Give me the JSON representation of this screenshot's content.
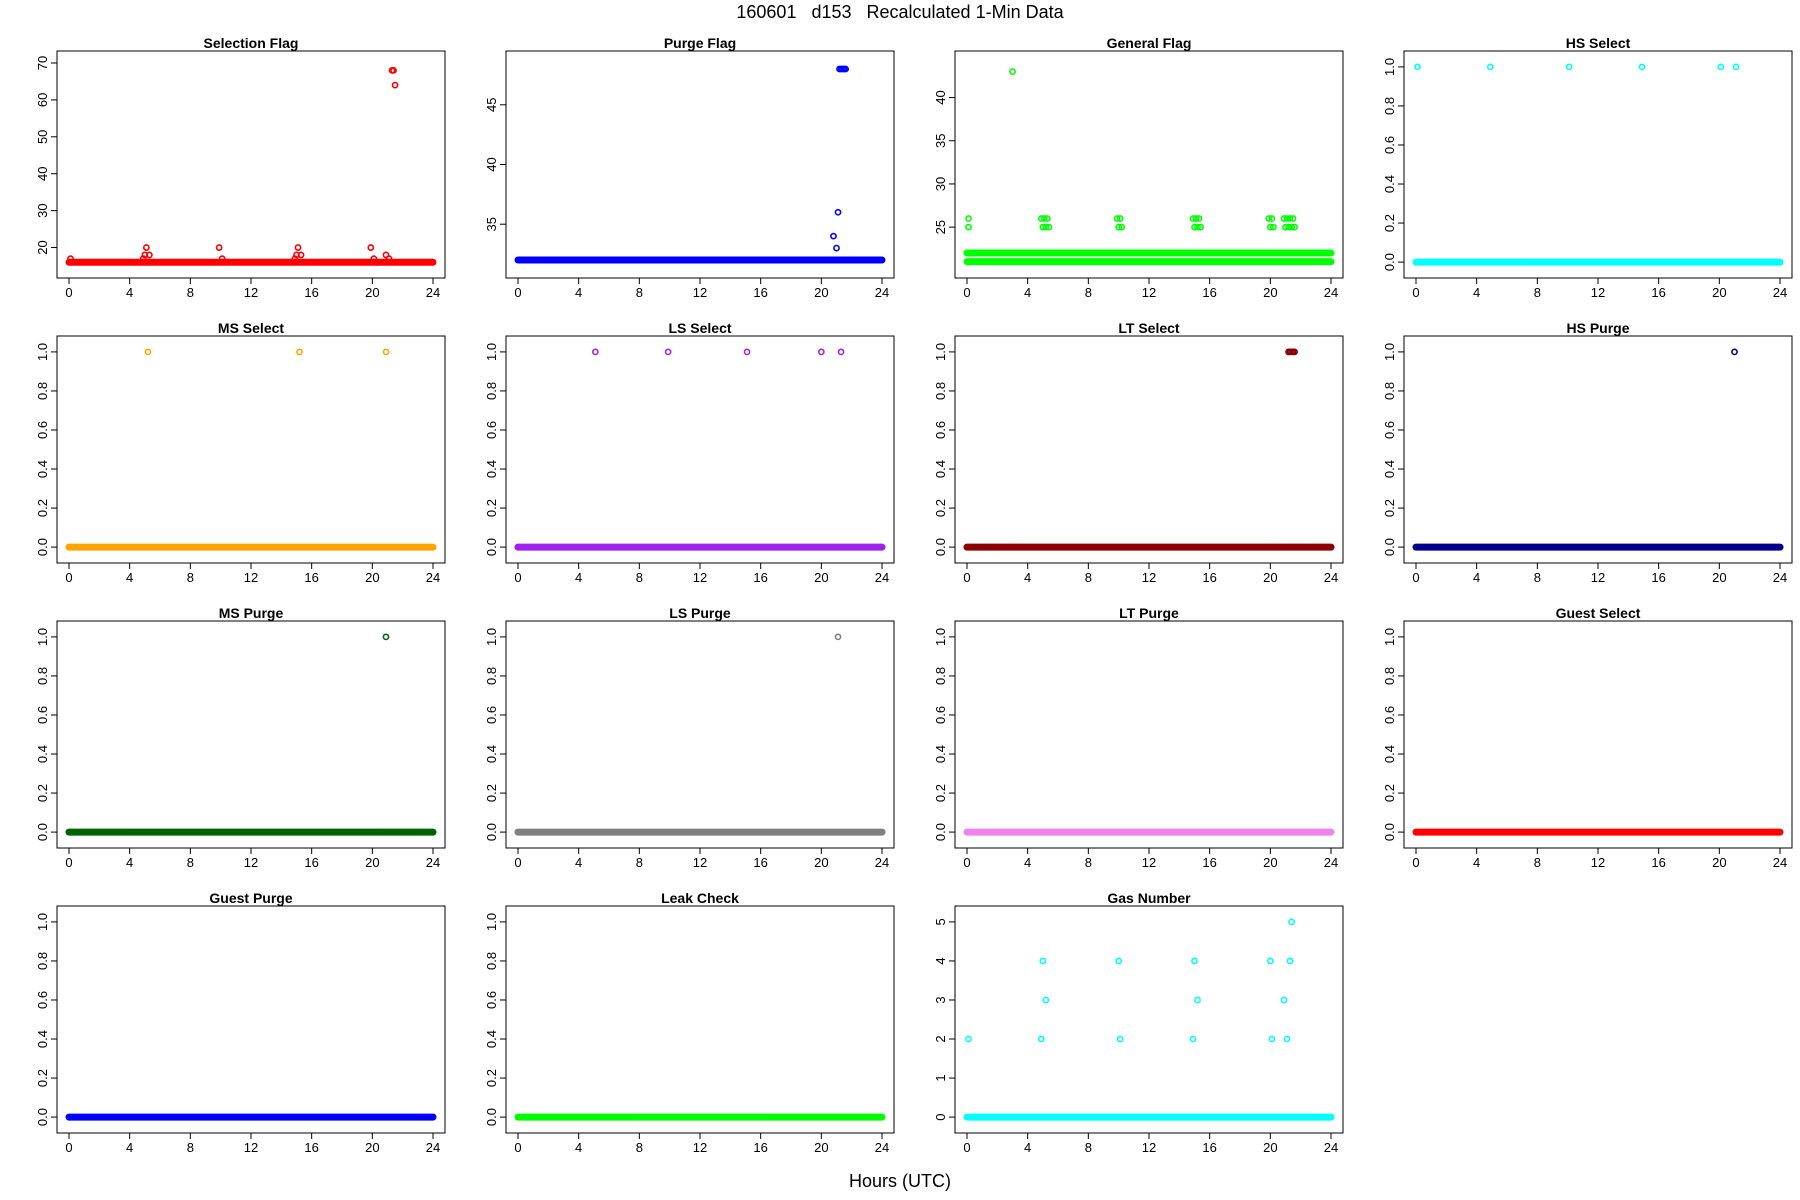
{
  "figure": {
    "title": "160601   d153   Recalculated 1-Min Data",
    "xlabel": "Hours (UTC)"
  },
  "chart_data": [
    {
      "type": "scatter",
      "title": "Selection Flag",
      "color": "#ff0000",
      "xlim": [
        0,
        24
      ],
      "ylim": [
        15,
        70
      ],
      "xticks": [
        0,
        4,
        8,
        12,
        16,
        20,
        24
      ],
      "yticks": [
        20,
        30,
        40,
        50,
        60,
        70
      ],
      "baseline_segments": [
        {
          "y": 16,
          "from": 0,
          "to": 24
        }
      ],
      "points": [
        [
          0.1,
          17
        ],
        [
          4.9,
          17
        ],
        [
          5.0,
          18
        ],
        [
          5.1,
          20
        ],
        [
          5.3,
          18
        ],
        [
          9.9,
          20
        ],
        [
          10.1,
          17
        ],
        [
          14.9,
          17
        ],
        [
          15.0,
          18
        ],
        [
          15.1,
          20
        ],
        [
          15.3,
          18
        ],
        [
          19.9,
          20
        ],
        [
          20.1,
          17
        ],
        [
          20.3,
          16
        ],
        [
          20.9,
          18
        ],
        [
          21.1,
          17
        ],
        [
          21.3,
          68
        ],
        [
          21.4,
          68
        ],
        [
          21.5,
          64
        ]
      ]
    },
    {
      "type": "scatter",
      "title": "Purge Flag",
      "color": "#0000ff",
      "xlim": [
        0,
        24
      ],
      "ylim": [
        31.5,
        48.5
      ],
      "xticks": [
        0,
        4,
        8,
        12,
        16,
        20,
        24
      ],
      "yticks": [
        35,
        40,
        45
      ],
      "baseline_segments": [
        {
          "y": 32,
          "from": 0,
          "to": 24
        }
      ],
      "points": [
        [
          20.8,
          34
        ],
        [
          21.0,
          33
        ],
        [
          21.1,
          36
        ],
        [
          21.2,
          48
        ],
        [
          21.3,
          48
        ],
        [
          21.4,
          48
        ],
        [
          21.5,
          48
        ],
        [
          21.6,
          48
        ]
      ]
    },
    {
      "type": "scatter",
      "title": "General Flag",
      "color": "#00ff00",
      "xlim": [
        0,
        24
      ],
      "ylim": [
        20.5,
        44
      ],
      "xticks": [
        0,
        4,
        8,
        12,
        16,
        20,
        24
      ],
      "yticks": [
        25,
        30,
        35,
        40
      ],
      "baseline_segments": [
        {
          "y": 21,
          "from": 0,
          "to": 24
        },
        {
          "y": 22,
          "from": 0,
          "to": 24
        }
      ],
      "points": [
        [
          0.1,
          26
        ],
        [
          0.1,
          25
        ],
        [
          3.0,
          43
        ],
        [
          4.9,
          26
        ],
        [
          5.0,
          25
        ],
        [
          5.1,
          26
        ],
        [
          5.2,
          25
        ],
        [
          5.3,
          26
        ],
        [
          5.4,
          25
        ],
        [
          9.9,
          26
        ],
        [
          10.0,
          25
        ],
        [
          10.1,
          26
        ],
        [
          10.2,
          25
        ],
        [
          14.9,
          26
        ],
        [
          15.0,
          25
        ],
        [
          15.1,
          26
        ],
        [
          15.2,
          25
        ],
        [
          15.3,
          26
        ],
        [
          15.4,
          25
        ],
        [
          19.9,
          26
        ],
        [
          20.0,
          25
        ],
        [
          20.1,
          26
        ],
        [
          20.2,
          25
        ],
        [
          20.9,
          26
        ],
        [
          21.0,
          25
        ],
        [
          21.1,
          26
        ],
        [
          21.2,
          25
        ],
        [
          21.3,
          26
        ],
        [
          21.4,
          25
        ],
        [
          21.5,
          26
        ],
        [
          21.6,
          25
        ]
      ]
    },
    {
      "type": "scatter",
      "title": "HS Select",
      "color": "#00ffff",
      "xlim": [
        0,
        24
      ],
      "ylim": [
        -0.02,
        1.02
      ],
      "xticks": [
        0,
        4,
        8,
        12,
        16,
        20,
        24
      ],
      "yticks": [
        0.0,
        0.2,
        0.4,
        0.6,
        0.8,
        1.0
      ],
      "baseline_segments": [
        {
          "y": 0,
          "from": 0,
          "to": 24
        }
      ],
      "points": [
        [
          0.1,
          1
        ],
        [
          4.9,
          1
        ],
        [
          10.1,
          1
        ],
        [
          14.9,
          1
        ],
        [
          20.1,
          1
        ],
        [
          21.1,
          1
        ]
      ]
    },
    {
      "type": "scatter",
      "title": "MS Select",
      "color": "#ffa500",
      "xlim": [
        0,
        24
      ],
      "ylim": [
        -0.02,
        1.02
      ],
      "xticks": [
        0,
        4,
        8,
        12,
        16,
        20,
        24
      ],
      "yticks": [
        0.0,
        0.2,
        0.4,
        0.6,
        0.8,
        1.0
      ],
      "baseline_segments": [
        {
          "y": 0,
          "from": 0,
          "to": 24
        }
      ],
      "points": [
        [
          5.2,
          1
        ],
        [
          15.2,
          1
        ],
        [
          20.9,
          1
        ]
      ]
    },
    {
      "type": "scatter",
      "title": "LS Select",
      "color": "#a020f0",
      "xlim": [
        0,
        24
      ],
      "ylim": [
        -0.02,
        1.02
      ],
      "xticks": [
        0,
        4,
        8,
        12,
        16,
        20,
        24
      ],
      "yticks": [
        0.0,
        0.2,
        0.4,
        0.6,
        0.8,
        1.0
      ],
      "baseline_segments": [
        {
          "y": 0,
          "from": 0,
          "to": 24
        }
      ],
      "points": [
        [
          5.1,
          1
        ],
        [
          9.9,
          1
        ],
        [
          15.1,
          1
        ],
        [
          20.0,
          1
        ],
        [
          21.3,
          1
        ]
      ]
    },
    {
      "type": "scatter",
      "title": "LT Select",
      "color": "#8b0000",
      "xlim": [
        0,
        24
      ],
      "ylim": [
        -0.02,
        1.02
      ],
      "xticks": [
        0,
        4,
        8,
        12,
        16,
        20,
        24
      ],
      "yticks": [
        0.0,
        0.2,
        0.4,
        0.6,
        0.8,
        1.0
      ],
      "baseline_segments": [
        {
          "y": 0,
          "from": 0,
          "to": 24
        }
      ],
      "points": [
        [
          21.2,
          1
        ],
        [
          21.3,
          1
        ],
        [
          21.4,
          1
        ],
        [
          21.5,
          1
        ],
        [
          21.6,
          1
        ]
      ]
    },
    {
      "type": "scatter",
      "title": "HS Purge",
      "color": "#00008b",
      "xlim": [
        0,
        24
      ],
      "ylim": [
        -0.02,
        1.02
      ],
      "xticks": [
        0,
        4,
        8,
        12,
        16,
        20,
        24
      ],
      "yticks": [
        0.0,
        0.2,
        0.4,
        0.6,
        0.8,
        1.0
      ],
      "baseline_segments": [
        {
          "y": 0,
          "from": 0,
          "to": 24
        }
      ],
      "points": [
        [
          21.0,
          1
        ]
      ]
    },
    {
      "type": "scatter",
      "title": "MS Purge",
      "color": "#006400",
      "xlim": [
        0,
        24
      ],
      "ylim": [
        -0.02,
        1.02
      ],
      "xticks": [
        0,
        4,
        8,
        12,
        16,
        20,
        24
      ],
      "yticks": [
        0.0,
        0.2,
        0.4,
        0.6,
        0.8,
        1.0
      ],
      "baseline_segments": [
        {
          "y": 0,
          "from": 0,
          "to": 24
        }
      ],
      "points": [
        [
          20.9,
          1
        ]
      ]
    },
    {
      "type": "scatter",
      "title": "LS Purge",
      "color": "#808080",
      "xlim": [
        0,
        24
      ],
      "ylim": [
        -0.02,
        1.02
      ],
      "xticks": [
        0,
        4,
        8,
        12,
        16,
        20,
        24
      ],
      "yticks": [
        0.0,
        0.2,
        0.4,
        0.6,
        0.8,
        1.0
      ],
      "baseline_segments": [
        {
          "y": 0,
          "from": 0,
          "to": 24
        }
      ],
      "points": [
        [
          21.1,
          1
        ]
      ]
    },
    {
      "type": "scatter",
      "title": "LT Purge",
      "color": "#ee82ee",
      "xlim": [
        0,
        24
      ],
      "ylim": [
        -0.02,
        1.02
      ],
      "xticks": [
        0,
        4,
        8,
        12,
        16,
        20,
        24
      ],
      "yticks": [
        0.0,
        0.2,
        0.4,
        0.6,
        0.8,
        1.0
      ],
      "baseline_segments": [
        {
          "y": 0,
          "from": 0,
          "to": 24
        }
      ],
      "points": []
    },
    {
      "type": "scatter",
      "title": "Guest Select",
      "color": "#ff0000",
      "xlim": [
        0,
        24
      ],
      "ylim": [
        -0.02,
        1.02
      ],
      "xticks": [
        0,
        4,
        8,
        12,
        16,
        20,
        24
      ],
      "yticks": [
        0.0,
        0.2,
        0.4,
        0.6,
        0.8,
        1.0
      ],
      "baseline_segments": [
        {
          "y": 0,
          "from": 0,
          "to": 24
        }
      ],
      "points": []
    },
    {
      "type": "scatter",
      "title": "Guest Purge",
      "color": "#0000ff",
      "xlim": [
        0,
        24
      ],
      "ylim": [
        -0.02,
        1.02
      ],
      "xticks": [
        0,
        4,
        8,
        12,
        16,
        20,
        24
      ],
      "yticks": [
        0.0,
        0.2,
        0.4,
        0.6,
        0.8,
        1.0
      ],
      "baseline_segments": [
        {
          "y": 0,
          "from": 0,
          "to": 24
        }
      ],
      "points": []
    },
    {
      "type": "scatter",
      "title": "Leak Check",
      "color": "#00ff00",
      "xlim": [
        0,
        24
      ],
      "ylim": [
        -0.02,
        1.02
      ],
      "xticks": [
        0,
        4,
        8,
        12,
        16,
        20,
        24
      ],
      "yticks": [
        0.0,
        0.2,
        0.4,
        0.6,
        0.8,
        1.0
      ],
      "baseline_segments": [
        {
          "y": 0,
          "from": 0,
          "to": 24
        }
      ],
      "points": []
    },
    {
      "type": "scatter",
      "title": "Gas Number",
      "color": "#00ffff",
      "xlim": [
        0,
        24
      ],
      "ylim": [
        -0.1,
        5.1
      ],
      "xticks": [
        0,
        4,
        8,
        12,
        16,
        20,
        24
      ],
      "yticks": [
        0,
        1,
        2,
        3,
        4,
        5
      ],
      "baseline_segments": [
        {
          "y": 0,
          "from": 0,
          "to": 24
        }
      ],
      "points": [
        [
          0.1,
          2
        ],
        [
          4.9,
          2
        ],
        [
          5.0,
          4
        ],
        [
          5.2,
          3
        ],
        [
          10.0,
          4
        ],
        [
          10.1,
          2
        ],
        [
          14.9,
          2
        ],
        [
          15.0,
          4
        ],
        [
          15.2,
          3
        ],
        [
          20.0,
          4
        ],
        [
          20.1,
          2
        ],
        [
          20.9,
          3
        ],
        [
          21.1,
          2
        ],
        [
          21.3,
          4
        ],
        [
          21.4,
          5
        ]
      ]
    }
  ]
}
